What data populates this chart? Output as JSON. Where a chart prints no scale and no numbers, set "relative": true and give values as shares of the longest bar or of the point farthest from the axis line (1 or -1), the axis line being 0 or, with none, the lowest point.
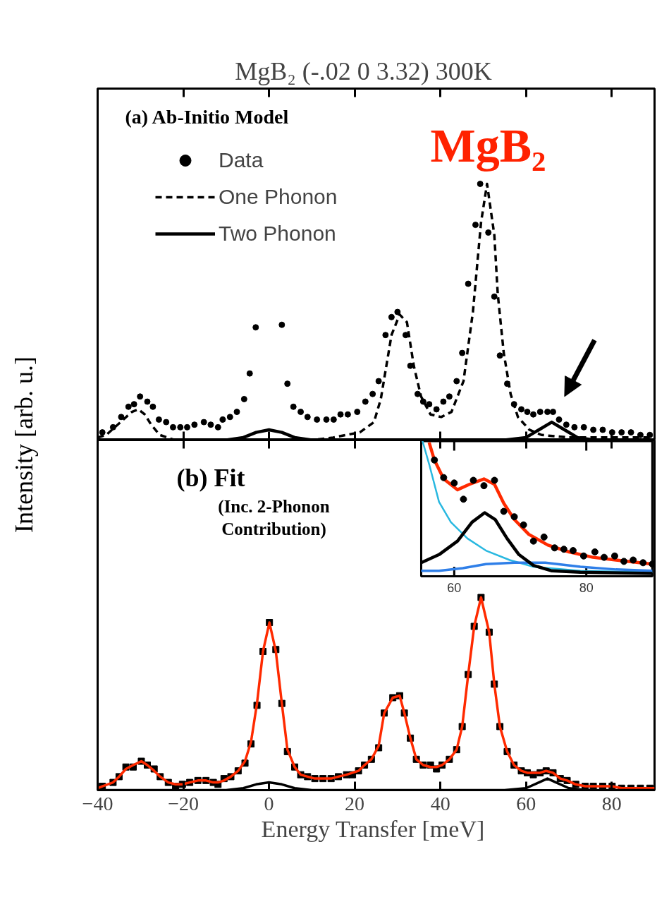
{
  "chart_data": [
    {
      "type": "scatter",
      "title": "MgB₂  (-.02  0  3.32)  300K",
      "ylabel": "Intensity  [arb. u.]",
      "annotations": [
        "(a)  Ab-Initio Model",
        "MgB₂"
      ],
      "relative": true,
      "xlim": [
        -40,
        90
      ],
      "xticks": [
        -40,
        -20,
        0,
        20,
        40,
        60,
        80
      ],
      "tick_labels": false,
      "legend": "top left",
      "series": [
        {
          "name": "Data",
          "marker": "circle",
          "color": "#000000",
          "x": [
            -38.9,
            -36.4,
            -34.5,
            -32.8,
            -31.5,
            -30.1,
            -28.4,
            -27.1,
            -25.7,
            -24.0,
            -22.4,
            -20.7,
            -19.1,
            -17.4,
            -15.2,
            -13.6,
            -11.9,
            -10.8,
            -9.1,
            -7.5,
            -5.8,
            -4.5,
            -3.1,
            3.0,
            4.3,
            5.7,
            7.4,
            9.0,
            11.2,
            13.4,
            15.1,
            16.7,
            18.4,
            20.6,
            22.5,
            24.2,
            25.6,
            27.2,
            28.6,
            30.0,
            31.9,
            33.0,
            34.7,
            36.0,
            37.4,
            39.1,
            40.7,
            42.1,
            43.8,
            45.1,
            46.5,
            48.2,
            49.3,
            51.2,
            52.6,
            53.9,
            55.6,
            57.2,
            58.9,
            60.3,
            61.7,
            63.3,
            65.0,
            66.3,
            67.7,
            69.4,
            71.3,
            73.5,
            75.7,
            77.9,
            80.1,
            82.3,
            84.5,
            86.7,
            88.9
          ],
          "values": [
            0.03,
            0.05,
            0.09,
            0.13,
            0.14,
            0.17,
            0.15,
            0.13,
            0.08,
            0.07,
            0.05,
            0.05,
            0.05,
            0.06,
            0.07,
            0.06,
            0.05,
            0.08,
            0.09,
            0.11,
            0.16,
            0.26,
            0.44,
            0.45,
            0.22,
            0.13,
            0.11,
            0.09,
            0.08,
            0.08,
            0.08,
            0.1,
            0.1,
            0.11,
            0.15,
            0.18,
            0.23,
            0.41,
            0.48,
            0.5,
            0.41,
            0.29,
            0.18,
            0.15,
            0.14,
            0.12,
            0.15,
            0.17,
            0.23,
            0.34,
            0.61,
            0.84,
            1.0,
            0.81,
            0.56,
            0.33,
            0.22,
            0.14,
            0.12,
            0.11,
            0.1,
            0.11,
            0.11,
            0.11,
            0.08,
            0.06,
            0.05,
            0.05,
            0.04,
            0.04,
            0.03,
            0.03,
            0.03,
            0.02,
            0.02
          ]
        },
        {
          "name": "One Phonon",
          "type": "line",
          "line_style": "dashed",
          "color": "#000000",
          "x": [
            -40,
            -38,
            -36,
            -34,
            -32,
            -30.5,
            -29,
            -27.5,
            -25.5,
            -22,
            -10,
            10,
            15,
            18,
            21.2,
            24.5,
            26.1,
            28.6,
            30.5,
            32.2,
            33.8,
            35.5,
            37.7,
            40.2,
            42.6,
            45.4,
            47.6,
            49.5,
            50.9,
            52.6,
            53.4,
            54.8,
            56.4,
            58.1,
            60.8,
            63.6,
            70,
            90
          ],
          "values": [
            0.01,
            0.02,
            0.05,
            0.08,
            0.11,
            0.12,
            0.1,
            0.06,
            0.02,
            0.0,
            0.0,
            0.0,
            0.01,
            0.02,
            0.03,
            0.07,
            0.16,
            0.41,
            0.49,
            0.46,
            0.29,
            0.17,
            0.1,
            0.09,
            0.11,
            0.23,
            0.5,
            0.85,
            1.0,
            0.8,
            0.57,
            0.34,
            0.18,
            0.09,
            0.04,
            0.02,
            0.01,
            0.01
          ]
        },
        {
          "name": "Two Phonon",
          "type": "line",
          "line_style": "solid",
          "color": "#000000",
          "x": [
            -40,
            -10,
            -6,
            -3,
            0,
            3,
            6,
            10,
            55,
            60,
            63,
            66,
            69,
            72,
            76,
            90
          ],
          "values": [
            0,
            0,
            0.01,
            0.03,
            0.04,
            0.03,
            0.01,
            0,
            0,
            0.01,
            0.04,
            0.07,
            0.04,
            0.01,
            0,
            0
          ]
        }
      ]
    },
    {
      "type": "scatter",
      "xlabel": "Energy Transfer  [meV]",
      "annotations": [
        "(b)  Fit",
        "(Inc. 2-Phonon\nContribution)"
      ],
      "relative": true,
      "xlim": [
        -40,
        90
      ],
      "xticks": [
        -40,
        -20,
        0,
        20,
        40,
        60,
        80
      ],
      "tick_labels": "x",
      "series": [
        {
          "marker": "square",
          "color": "#000000",
          "x": [
            -38.9,
            -36.4,
            -35.0,
            -33.4,
            -31.7,
            -29.8,
            -28.4,
            -26.8,
            -25.4,
            -23.5,
            -21.8,
            -20.2,
            -18.5,
            -16.6,
            -14.7,
            -13.0,
            -11.9,
            -10.5,
            -8.9,
            -7.2,
            -5.6,
            -4.2,
            -2.8,
            -1.4,
            0.1,
            1.6,
            3.0,
            4.3,
            6.0,
            7.4,
            9.0,
            10.7,
            12.6,
            14.5,
            16.2,
            18.1,
            19.5,
            20.9,
            22.3,
            23.9,
            25.6,
            26.9,
            28.9,
            30.5,
            31.6,
            33.0,
            34.4,
            36.0,
            37.7,
            39.1,
            40.4,
            42.1,
            43.8,
            45.1,
            46.5,
            47.9,
            49.5,
            51.4,
            52.6,
            53.9,
            55.6,
            57.2,
            58.9,
            60.3,
            61.7,
            63.3,
            64.7,
            66.3,
            68.0,
            69.6,
            71.6,
            73.8,
            75.7,
            77.9,
            80.1,
            82.3,
            84.5,
            86.7,
            88.9
          ],
          "values": [
            0.02,
            0.04,
            0.07,
            0.12,
            0.12,
            0.15,
            0.13,
            0.11,
            0.07,
            0.04,
            0.02,
            0.03,
            0.04,
            0.05,
            0.05,
            0.04,
            0.03,
            0.06,
            0.07,
            0.1,
            0.14,
            0.24,
            0.44,
            0.72,
            0.87,
            0.73,
            0.45,
            0.2,
            0.12,
            0.08,
            0.07,
            0.06,
            0.06,
            0.06,
            0.07,
            0.08,
            0.08,
            0.1,
            0.13,
            0.16,
            0.22,
            0.4,
            0.48,
            0.49,
            0.4,
            0.27,
            0.16,
            0.13,
            0.13,
            0.11,
            0.13,
            0.16,
            0.21,
            0.33,
            0.6,
            0.85,
            1.0,
            0.82,
            0.55,
            0.33,
            0.2,
            0.13,
            0.1,
            0.09,
            0.08,
            0.09,
            0.1,
            0.09,
            0.06,
            0.05,
            0.03,
            0.02,
            0.02,
            0.02,
            0.02,
            0.01,
            0.01,
            0.01,
            0.01
          ]
        },
        {
          "type": "line",
          "color": "#ff2a00",
          "x": [
            -40,
            -38.9,
            -36.4,
            -35.0,
            -33.4,
            -31.7,
            -29.8,
            -28.4,
            -26.8,
            -25.4,
            -23.5,
            -21.8,
            -20.2,
            -18.5,
            -16.6,
            -14.7,
            -13.0,
            -11.9,
            -10.5,
            -8.9,
            -7.2,
            -5.6,
            -4.2,
            -2.8,
            -1.4,
            0.1,
            1.6,
            3.0,
            4.3,
            6.0,
            7.4,
            9.0,
            10.7,
            12.6,
            14.5,
            16.2,
            18.1,
            19.5,
            20.9,
            22.3,
            23.9,
            25.6,
            26.9,
            28.9,
            30.5,
            31.6,
            33.0,
            34.4,
            36.0,
            37.7,
            39.1,
            40.4,
            42.1,
            43.8,
            45.1,
            46.5,
            47.9,
            49.5,
            51.4,
            52.6,
            53.9,
            55.6,
            57.2,
            58.9,
            60.3,
            61.7,
            63.3,
            64.7,
            66.3,
            68.0,
            69.6,
            71.6,
            73.8,
            75.7,
            77.9,
            80.1,
            82.3,
            84.5,
            86.7,
            88.9,
            90
          ],
          "values": [
            0.01,
            0.02,
            0.04,
            0.07,
            0.11,
            0.13,
            0.15,
            0.13,
            0.1,
            0.07,
            0.04,
            0.03,
            0.03,
            0.04,
            0.05,
            0.05,
            0.04,
            0.04,
            0.05,
            0.07,
            0.1,
            0.15,
            0.25,
            0.45,
            0.72,
            0.87,
            0.72,
            0.45,
            0.21,
            0.12,
            0.08,
            0.07,
            0.06,
            0.06,
            0.06,
            0.07,
            0.08,
            0.09,
            0.1,
            0.13,
            0.16,
            0.23,
            0.4,
            0.48,
            0.49,
            0.4,
            0.27,
            0.16,
            0.13,
            0.12,
            0.12,
            0.13,
            0.16,
            0.21,
            0.33,
            0.6,
            0.85,
            1.0,
            0.82,
            0.55,
            0.33,
            0.2,
            0.13,
            0.1,
            0.09,
            0.09,
            0.09,
            0.1,
            0.09,
            0.06,
            0.05,
            0.03,
            0.02,
            0.02,
            0.02,
            0.02,
            0.01,
            0.01,
            0.01,
            0.01,
            0.01
          ]
        },
        {
          "type": "line",
          "color": "#000000",
          "x": [
            -40,
            -10,
            -6,
            -3,
            0,
            3,
            6,
            10,
            55,
            60,
            63,
            65,
            67,
            70,
            74,
            90
          ],
          "values": [
            0,
            0,
            0.01,
            0.03,
            0.04,
            0.03,
            0.01,
            0,
            0,
            0.01,
            0.04,
            0.06,
            0.04,
            0.01,
            0,
            0
          ]
        }
      ]
    },
    {
      "type": "scatter",
      "relative": true,
      "xlim": [
        55,
        90
      ],
      "xticks": [
        60,
        80
      ],
      "series": [
        {
          "type": "line",
          "color": "#29b8e0",
          "x": [
            55.2,
            56.2,
            57.7,
            59.5,
            62.0,
            64.8,
            68.4,
            72.0,
            79.1,
            90
          ],
          "values": [
            1.0,
            0.83,
            0.55,
            0.4,
            0.28,
            0.19,
            0.12,
            0.07,
            0.04,
            0.03
          ]
        },
        {
          "type": "line",
          "color": "#2f7fe8",
          "x": [
            55,
            57.7,
            61.3,
            64.8,
            69.1,
            73.8,
            79.1,
            84.5,
            90
          ],
          "values": [
            0.04,
            0.04,
            0.06,
            0.09,
            0.1,
            0.1,
            0.07,
            0.05,
            0.04
          ]
        },
        {
          "type": "line",
          "color": "#000000",
          "x": [
            55,
            57.7,
            60.5,
            62.7,
            64.6,
            66.2,
            68.0,
            69.8,
            72.0,
            74.8,
            79.1,
            90
          ],
          "values": [
            0.1,
            0.16,
            0.26,
            0.4,
            0.47,
            0.42,
            0.28,
            0.16,
            0.08,
            0.04,
            0.03,
            0.02
          ]
        },
        {
          "type": "line",
          "color": "#ff2a00",
          "x": [
            56.2,
            57.0,
            58.4,
            60.5,
            62.3,
            64.5,
            66.1,
            67.5,
            69.1,
            71.3,
            74.2,
            77.4,
            81.0,
            84.5,
            90.0
          ],
          "values": [
            0.99,
            0.86,
            0.72,
            0.64,
            0.68,
            0.72,
            0.68,
            0.54,
            0.42,
            0.31,
            0.23,
            0.18,
            0.14,
            0.12,
            0.09
          ]
        },
        {
          "marker": "circle",
          "color": "#000000",
          "x": [
            57.0,
            58.4,
            60.0,
            61.4,
            62.9,
            64.5,
            66.1,
            67.5,
            69.1,
            70.5,
            72.0,
            73.6,
            75.2,
            76.6,
            78.0,
            79.6,
            81.3,
            82.7,
            84.3,
            85.7,
            87.1,
            88.6,
            90.0
          ],
          "values": [
            0.86,
            0.73,
            0.69,
            0.57,
            0.71,
            0.67,
            0.71,
            0.48,
            0.44,
            0.38,
            0.26,
            0.29,
            0.21,
            0.2,
            0.19,
            0.15,
            0.18,
            0.14,
            0.15,
            0.11,
            0.12,
            0.1,
            0.09
          ]
        }
      ]
    }
  ]
}
